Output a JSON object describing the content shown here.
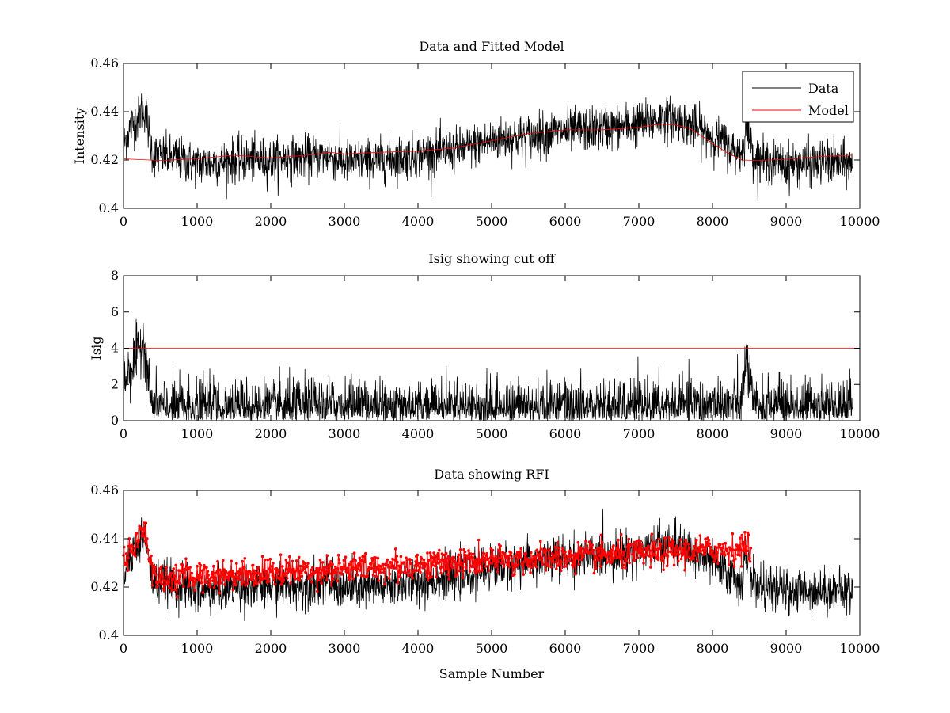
{
  "figure": {
    "background": "#ffffff"
  },
  "chart_data": [
    {
      "id": "panel1",
      "type": "line",
      "title": "Data and Fitted Model",
      "xlabel": "",
      "ylabel": "Intensity",
      "xlim": [
        0,
        10000
      ],
      "ylim": [
        0.4,
        0.46
      ],
      "xticks": [
        0,
        1000,
        2000,
        3000,
        4000,
        5000,
        6000,
        7000,
        8000,
        9000,
        10000
      ],
      "yticks": [
        0.4,
        0.42,
        0.44,
        0.46
      ],
      "xtick_labels": [
        "0",
        "1000",
        "2000",
        "3000",
        "4000",
        "5000",
        "6000",
        "7000",
        "8000",
        "9000",
        "10000"
      ],
      "ytick_labels": [
        "0.4",
        "0.42",
        "0.44",
        "0.46"
      ],
      "grid": false,
      "legend": {
        "position": "top-right",
        "entries": [
          {
            "name": "Data",
            "color": "#000000"
          },
          {
            "name": "Model",
            "color": "#ff0000"
          }
        ]
      },
      "series": [
        {
          "name": "Data",
          "color": "#000000",
          "noise": 0.0045,
          "x": [
            0,
            100,
            200,
            250,
            300,
            350,
            400,
            500,
            700,
            1000,
            1300,
            1500,
            2000,
            2500,
            2800,
            3000,
            3500,
            4000,
            4500,
            5000,
            5500,
            6000,
            6500,
            7000,
            7300,
            7500,
            7800,
            8000,
            8200,
            8400,
            8450,
            8500,
            8550,
            8600,
            8800,
            9000,
            9500,
            9900
          ],
          "y": [
            0.426,
            0.434,
            0.437,
            0.441,
            0.44,
            0.43,
            0.422,
            0.422,
            0.421,
            0.418,
            0.419,
            0.42,
            0.42,
            0.421,
            0.422,
            0.419,
            0.42,
            0.422,
            0.424,
            0.428,
            0.43,
            0.432,
            0.433,
            0.435,
            0.437,
            0.437,
            0.433,
            0.43,
            0.426,
            0.422,
            0.433,
            0.43,
            0.423,
            0.42,
            0.419,
            0.418,
            0.419,
            0.418
          ]
        },
        {
          "name": "Model",
          "color": "#ff0000",
          "x": [
            0,
            200,
            500,
            1000,
            1500,
            2000,
            2500,
            2800,
            3000,
            3500,
            4000,
            4500,
            5000,
            5500,
            6000,
            6500,
            7000,
            7300,
            7500,
            7700,
            8000,
            8200,
            8400,
            8600,
            9000,
            9500,
            9900
          ],
          "y": [
            0.4205,
            0.4202,
            0.4198,
            0.4205,
            0.422,
            0.4208,
            0.422,
            0.4232,
            0.4225,
            0.4232,
            0.4237,
            0.425,
            0.428,
            0.431,
            0.4325,
            0.4325,
            0.4335,
            0.435,
            0.4345,
            0.433,
            0.427,
            0.423,
            0.42,
            0.4198,
            0.4203,
            0.4215,
            0.422
          ]
        }
      ]
    },
    {
      "id": "panel2",
      "type": "line",
      "title": "Isig showing cut off",
      "xlabel": "",
      "ylabel": "Isig",
      "xlim": [
        0,
        10000
      ],
      "ylim": [
        0,
        8
      ],
      "xticks": [
        0,
        1000,
        2000,
        3000,
        4000,
        5000,
        6000,
        7000,
        8000,
        9000,
        10000
      ],
      "yticks": [
        0,
        2,
        4,
        6,
        8
      ],
      "xtick_labels": [
        "0",
        "1000",
        "2000",
        "3000",
        "4000",
        "5000",
        "6000",
        "7000",
        "8000",
        "9000",
        "10000"
      ],
      "ytick_labels": [
        "0",
        "2",
        "4",
        "6",
        "8"
      ],
      "grid": false,
      "series": [
        {
          "name": "",
          "color": "#000000",
          "noise": 0.8,
          "x": [
            0,
            100,
            200,
            250,
            300,
            350,
            400,
            1000,
            2000,
            3000,
            4000,
            5000,
            6000,
            7000,
            8000,
            8400,
            8450,
            8500,
            8550,
            8600,
            9000,
            9900
          ],
          "y": [
            2.2,
            3,
            3.6,
            4.5,
            4.2,
            1.5,
            0.7,
            0.8,
            0.7,
            0.8,
            0.8,
            0.7,
            0.7,
            0.7,
            0.8,
            0.8,
            3.5,
            2.5,
            0.8,
            0.7,
            0.8,
            0.8
          ]
        },
        {
          "name": "",
          "color": "#ff0000",
          "x": [
            0,
            10000
          ],
          "y": [
            4,
            4
          ]
        }
      ]
    },
    {
      "id": "panel3",
      "type": "line",
      "title": "Data showing RFI",
      "xlabel": "Sample Number",
      "ylabel": "",
      "xlim": [
        0,
        10000
      ],
      "ylim": [
        0.4,
        0.46
      ],
      "xticks": [
        0,
        1000,
        2000,
        3000,
        4000,
        5000,
        6000,
        7000,
        8000,
        9000,
        10000
      ],
      "yticks": [
        0.4,
        0.42,
        0.44,
        0.46
      ],
      "xtick_labels": [
        "0",
        "1000",
        "2000",
        "3000",
        "4000",
        "5000",
        "6000",
        "7000",
        "8000",
        "9000",
        "10000"
      ],
      "ytick_labels": [
        "0.4",
        "0.42",
        "0.44",
        "0.46"
      ],
      "grid": false,
      "series": [
        {
          "name": "",
          "color": "#000000",
          "noise": 0.0045,
          "x": [
            0,
            100,
            200,
            250,
            300,
            350,
            400,
            500,
            700,
            1000,
            1300,
            1500,
            2000,
            2500,
            2800,
            3000,
            3500,
            4000,
            4500,
            5000,
            5500,
            6000,
            6500,
            7000,
            7300,
            7500,
            7800,
            8000,
            8200,
            8400,
            8450,
            8500,
            8550,
            8600,
            8800,
            9000,
            9500,
            9900
          ],
          "y": [
            0.426,
            0.434,
            0.437,
            0.441,
            0.44,
            0.43,
            0.422,
            0.422,
            0.421,
            0.418,
            0.419,
            0.42,
            0.42,
            0.421,
            0.422,
            0.419,
            0.42,
            0.422,
            0.424,
            0.428,
            0.43,
            0.432,
            0.433,
            0.435,
            0.437,
            0.437,
            0.433,
            0.43,
            0.426,
            0.422,
            0.433,
            0.43,
            0.423,
            0.42,
            0.419,
            0.418,
            0.419,
            0.418
          ]
        },
        {
          "name": "",
          "color": "#ff0000",
          "marker": "dot",
          "noise": 0.003,
          "x": [
            0,
            60,
            120,
            180,
            240,
            280,
            320,
            360,
            420,
            480,
            540,
            600,
            650,
            8460,
            8480,
            8500,
            8520
          ],
          "y": [
            0.432,
            0.434,
            0.437,
            0.438,
            0.443,
            0.445,
            0.44,
            0.43,
            0.425,
            0.424,
            0.424,
            0.422,
            0.424,
            0.436,
            0.438,
            0.437,
            0.433
          ]
        }
      ]
    }
  ]
}
